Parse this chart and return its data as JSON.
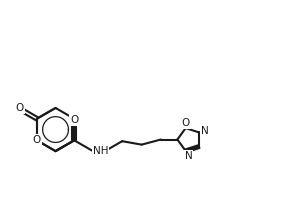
{
  "bg_color": "#ffffff",
  "line_color": "#1a1a1a",
  "line_width": 1.5,
  "figsize": [
    3.0,
    2.0
  ],
  "dpi": 100,
  "xlim": [
    0,
    10
  ],
  "ylim": [
    0,
    6.67
  ]
}
